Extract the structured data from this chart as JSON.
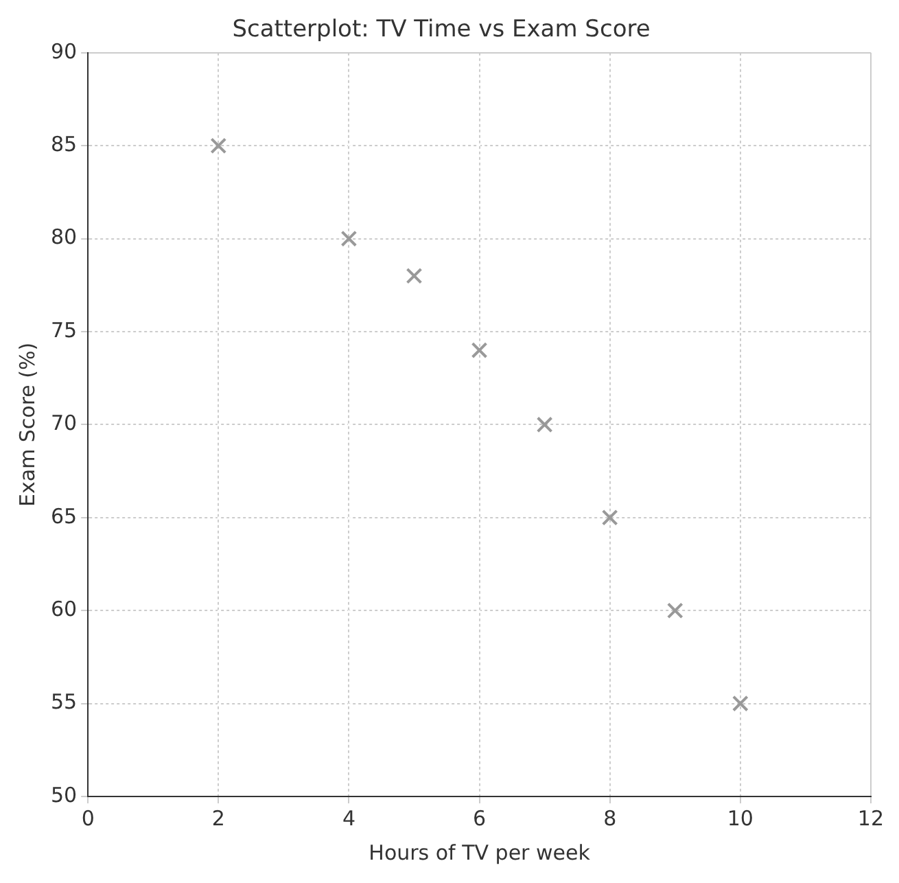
{
  "chart_data": {
    "type": "scatter",
    "title": "Scatterplot: TV Time vs Exam Score",
    "xlabel": "Hours of TV per week",
    "ylabel": "Exam Score (%)",
    "x": [
      2,
      4,
      5,
      6,
      7,
      8,
      9,
      10
    ],
    "values": [
      85,
      80,
      78,
      74,
      70,
      65,
      60,
      55
    ],
    "color": "#999999",
    "marker": "cross",
    "xlim": [
      0,
      12
    ],
    "xticks": [
      0,
      2,
      4,
      6,
      8,
      10,
      12
    ],
    "ylim": [
      50,
      90
    ],
    "yticks": [
      50,
      55,
      60,
      65,
      70,
      75,
      80,
      85,
      90
    ],
    "grid": true
  }
}
